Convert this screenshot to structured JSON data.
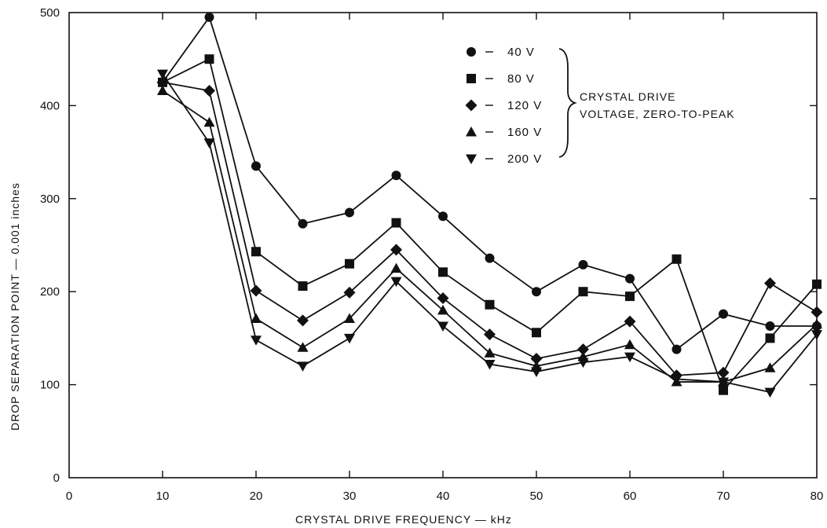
{
  "chart_data": {
    "type": "line",
    "xlabel": "CRYSTAL DRIVE FREQUENCY",
    "xlabel_unit": "kHz",
    "ylabel": "DROP SEPARATION POINT",
    "ylabel_unit": "0.001 inches",
    "xlim": [
      0,
      80
    ],
    "ylim": [
      0,
      500
    ],
    "xticks": [
      0,
      10,
      20,
      30,
      40,
      50,
      60,
      70,
      80
    ],
    "yticks": [
      0,
      100,
      200,
      300,
      400,
      500
    ],
    "grid": false,
    "legend_position": "top-center",
    "legend_annotation": [
      "CRYSTAL DRIVE",
      "VOLTAGE, ZERO-TO-PEAK"
    ],
    "x": [
      10,
      15,
      20,
      25,
      30,
      35,
      40,
      45,
      50,
      55,
      60,
      65,
      70,
      75,
      80
    ],
    "series": [
      {
        "name": "40 V",
        "marker": "circle",
        "values": [
          425,
          495,
          335,
          273,
          285,
          325,
          281,
          236,
          200,
          229,
          214,
          138,
          176,
          163,
          163
        ]
      },
      {
        "name": "80 V",
        "marker": "square",
        "values": [
          425,
          450,
          243,
          206,
          230,
          274,
          221,
          186,
          156,
          200,
          195,
          235,
          94,
          150,
          208
        ]
      },
      {
        "name": "120 V",
        "marker": "diamond",
        "values": [
          425,
          416,
          201,
          169,
          199,
          245,
          193,
          154,
          128,
          138,
          168,
          110,
          113,
          209,
          178
        ]
      },
      {
        "name": "160 V",
        "marker": "triangle-up",
        "values": [
          416,
          382,
          171,
          140,
          171,
          225,
          180,
          134,
          120,
          130,
          143,
          103,
          103,
          118,
          165
        ]
      },
      {
        "name": "200 V",
        "marker": "triangle-down",
        "values": [
          434,
          360,
          148,
          120,
          150,
          211,
          163,
          122,
          114,
          124,
          130,
          106,
          103,
          92,
          154
        ]
      }
    ]
  }
}
